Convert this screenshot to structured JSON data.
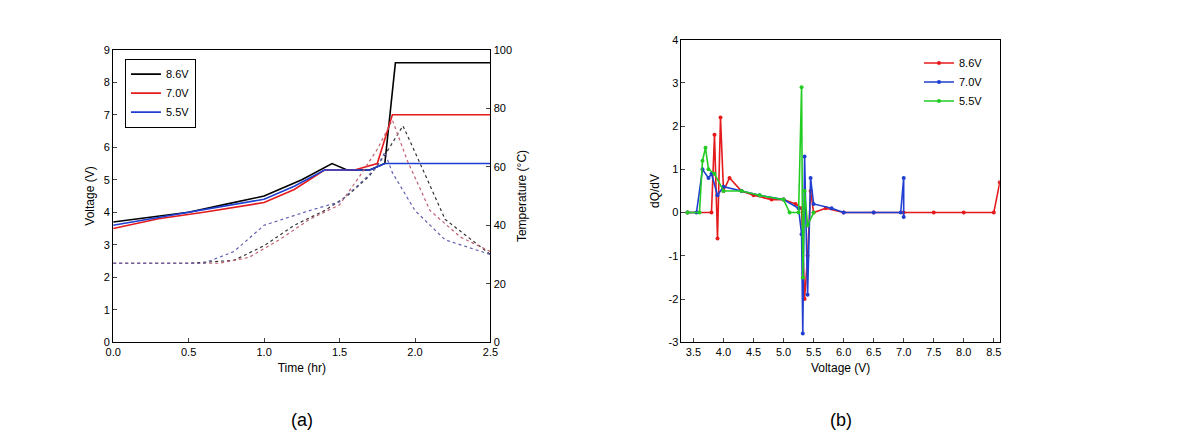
{
  "chart_data": [
    {
      "type": "line",
      "title": "(a)",
      "x_label": "Time (hr)",
      "y_label": "Voltage (V)",
      "y2_label": "Temperature (°C)",
      "xlim": [
        0,
        2.5
      ],
      "xticks": [
        {
          "value": 0,
          "label": "0.0"
        },
        0.5,
        {
          "value": 1,
          "label": "1.0"
        },
        1.5,
        {
          "value": 2,
          "label": "2.0"
        },
        2.5
      ],
      "ylim": [
        0,
        9
      ],
      "yticks": [
        0,
        1,
        2,
        3,
        4,
        5,
        6,
        7,
        8,
        9
      ],
      "y2lim": [
        0,
        100
      ],
      "y2ticks": [
        0,
        20,
        40,
        60,
        80,
        100
      ],
      "legend": "upper left",
      "grid": false,
      "series": [
        {
          "name": "8.6V",
          "color": "#000000",
          "line_style": "solid",
          "x": [
            0,
            0.25,
            0.5,
            0.75,
            1.0,
            1.25,
            1.45,
            1.55,
            1.7,
            1.8,
            1.87,
            2.0,
            2.5
          ],
          "values": [
            3.7,
            3.85,
            4.0,
            4.25,
            4.5,
            5.0,
            5.5,
            5.3,
            5.3,
            5.5,
            8.6,
            8.6,
            8.6
          ]
        },
        {
          "name": "7.0V",
          "color": "#e41a1c",
          "line_style": "solid",
          "x": [
            0,
            0.3,
            0.6,
            1.0,
            1.2,
            1.4,
            1.6,
            1.75,
            1.85,
            2.0,
            2.5
          ],
          "values": [
            3.5,
            3.8,
            4.0,
            4.3,
            4.7,
            5.3,
            5.3,
            5.5,
            7.0,
            7.0,
            7.0
          ]
        },
        {
          "name": "5.5V",
          "color": "#1f3fd0",
          "line_style": "solid",
          "x": [
            0,
            0.25,
            0.5,
            0.75,
            1.0,
            1.2,
            1.4,
            1.55,
            1.7,
            1.8,
            2.0,
            2.5
          ],
          "values": [
            3.6,
            3.8,
            4.0,
            4.2,
            4.4,
            4.8,
            5.3,
            5.3,
            5.3,
            5.5,
            5.5,
            5.5
          ]
        },
        {
          "color": "#333333",
          "line_style": "dot",
          "axis": "y2",
          "x": [
            0,
            0.5,
            0.8,
            1.0,
            1.2,
            1.4,
            1.55,
            1.7,
            1.8,
            1.92,
            2.0,
            2.2,
            2.5
          ],
          "values": [
            27,
            27,
            28,
            33,
            40,
            45,
            50,
            57,
            64,
            74,
            65,
            42,
            30
          ]
        },
        {
          "color": "#c06070",
          "line_style": "dot",
          "axis": "y2",
          "x": [
            0,
            0.7,
            0.9,
            1.1,
            1.3,
            1.5,
            1.65,
            1.75,
            1.85,
            1.95,
            2.1,
            2.3,
            2.5
          ],
          "values": [
            27,
            27,
            29,
            35,
            42,
            47,
            58,
            66,
            76,
            62,
            45,
            36,
            31
          ]
        },
        {
          "color": "#6060b0",
          "line_style": "dot",
          "axis": "y2",
          "x": [
            0,
            0.6,
            0.8,
            1.0,
            1.3,
            1.5,
            1.65,
            1.75,
            1.8,
            1.85,
            2.0,
            2.2,
            2.5
          ],
          "values": [
            27,
            27,
            31,
            40,
            45,
            48,
            55,
            60,
            65,
            58,
            45,
            35,
            30
          ]
        }
      ]
    },
    {
      "type": "line",
      "title": "(b)",
      "x_label": "Voltage (V)",
      "y_label": "dQ/dV",
      "xlim": [
        3.3,
        8.6
      ],
      "xticks": [
        3.5,
        {
          "value": 4,
          "label": "4.0"
        },
        4.5,
        {
          "value": 5,
          "label": "5.0"
        },
        5.5,
        {
          "value": 6,
          "label": "6.0"
        },
        6.5,
        {
          "value": 7,
          "label": "7.0"
        },
        7.5,
        {
          "value": 8,
          "label": "8.0"
        },
        8.5
      ],
      "ylim": [
        -3,
        4
      ],
      "yticks": [
        -3,
        -2,
        -1,
        0,
        1,
        2,
        3,
        4
      ],
      "legend": "upper right",
      "grid": false,
      "marker": "circle",
      "series": [
        {
          "name": "8.6V",
          "color": "#e41a1c",
          "line_style": "solid",
          "x": [
            3.4,
            3.8,
            3.85,
            3.9,
            3.95,
            4.0,
            4.1,
            4.3,
            4.5,
            4.8,
            5.0,
            5.2,
            5.3,
            5.35,
            5.4,
            5.45,
            5.5,
            5.7,
            6.0,
            6.5,
            7.0,
            7.5,
            8.0,
            8.5,
            8.6
          ],
          "values": [
            0,
            0,
            1.8,
            -0.6,
            2.2,
            0.5,
            0.8,
            0.5,
            0.4,
            0.3,
            0.3,
            0.2,
            0.1,
            -2.0,
            -1.0,
            0.5,
            0,
            0.1,
            0,
            0,
            0,
            0,
            0,
            0,
            0.7
          ]
        },
        {
          "name": "7.0V",
          "color": "#1f3fd0",
          "line_style": "solid",
          "x": [
            3.4,
            3.55,
            3.65,
            3.75,
            3.8,
            3.9,
            4.0,
            4.3,
            4.6,
            5.0,
            5.25,
            5.3,
            5.32,
            5.35,
            5.4,
            5.45,
            5.5,
            5.8,
            6.0,
            6.5,
            6.95,
            7.0,
            7.0
          ],
          "values": [
            0,
            0,
            1.0,
            0.8,
            0.9,
            0.4,
            0.6,
            0.5,
            0.4,
            0.3,
            0.1,
            -0.5,
            -2.8,
            1.3,
            -1.9,
            0.8,
            0.2,
            0.1,
            0,
            0,
            0,
            0.8,
            -0.1
          ]
        },
        {
          "name": "5.5V",
          "color": "#22cc22",
          "line_style": "solid",
          "x": [
            3.4,
            3.6,
            3.65,
            3.7,
            3.75,
            3.85,
            4.0,
            4.3,
            4.6,
            5.0,
            5.1,
            5.25,
            5.3,
            5.32,
            5.35,
            5.4,
            5.5
          ],
          "values": [
            0,
            0,
            1.2,
            1.5,
            1.0,
            0.9,
            0.5,
            0.5,
            0.4,
            0.3,
            0,
            0,
            2.9,
            -1.5,
            0.5,
            -0.3,
            0
          ]
        }
      ]
    }
  ]
}
